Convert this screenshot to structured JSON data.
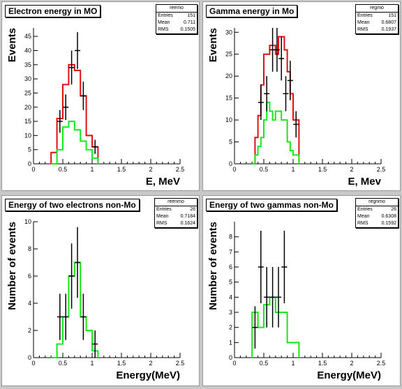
{
  "colors": {
    "red": "#e01010",
    "green": "#18e818",
    "data": "#000000"
  },
  "pads": [
    {
      "title": "Electron energy in MO",
      "stats": {
        "name": "reemo",
        "rows": [
          [
            "Entries",
            "151"
          ],
          [
            "Mean",
            "0.711"
          ],
          [
            "RMS",
            "0.1505"
          ]
        ]
      },
      "xlabel": "E, MeV",
      "ylabel": "Events"
    },
    {
      "title": "Gamma energy in Mo",
      "stats": {
        "name": "regmo",
        "rows": [
          [
            "Entries",
            "151"
          ],
          [
            "Mean",
            "0.6807"
          ],
          [
            "RMS",
            "0.1937"
          ]
        ]
      },
      "xlabel": "E, Mev",
      "ylabel": "Events"
    },
    {
      "title": "Energy of two electrons non-Mo",
      "stats": {
        "name": "reenmo",
        "rows": [
          [
            "Entries",
            "26"
          ],
          [
            "Mean",
            "0.7184"
          ],
          [
            "RMS",
            "0.1624"
          ]
        ]
      },
      "xlabel": "Energy(MeV)",
      "ylabel": "Number of events"
    },
    {
      "title": "Energy of two gammas non-Mo",
      "stats": {
        "name": "regnmo",
        "rows": [
          [
            "Entries",
            "26"
          ],
          [
            "Mean",
            "0.6308"
          ],
          [
            "RMS",
            "0.1592"
          ]
        ]
      },
      "xlabel": "Energy(MeV)",
      "ylabel": "Number of events"
    }
  ],
  "chart_data": [
    {
      "type": "bar",
      "xlim": [
        0,
        2.5
      ],
      "ylim": [
        0,
        48
      ],
      "xticks": [
        0,
        0.5,
        1,
        1.5,
        2,
        2.5
      ],
      "yticks": [
        0,
        5,
        10,
        15,
        20,
        25,
        30,
        35,
        40,
        45
      ],
      "bin_edges": [
        0.3,
        0.4,
        0.5,
        0.6,
        0.7,
        0.8,
        0.9,
        1.0,
        1.1
      ],
      "series": [
        {
          "color": "red",
          "values": [
            4,
            16,
            28,
            35,
            33,
            24,
            10,
            6
          ]
        },
        {
          "color": "green",
          "values": [
            0,
            5,
            13,
            15,
            12,
            8,
            5,
            2
          ]
        }
      ],
      "points": [
        {
          "x": 0.45,
          "y": 15,
          "err": 4
        },
        {
          "x": 0.55,
          "y": 20,
          "err": 4.5
        },
        {
          "x": 0.65,
          "y": 34,
          "err": 6
        },
        {
          "x": 0.75,
          "y": 40,
          "err": 6.5
        },
        {
          "x": 0.85,
          "y": 24,
          "err": 5
        },
        {
          "x": 0.95,
          "y": 0,
          "err": 0
        },
        {
          "x": 1.05,
          "y": 6,
          "err": 2.5
        }
      ]
    },
    {
      "type": "bar",
      "xlim": [
        0,
        2.5
      ],
      "ylim": [
        0,
        31
      ],
      "xticks": [
        0,
        0.5,
        1,
        1.5,
        2,
        2.5
      ],
      "yticks": [
        0,
        5,
        10,
        15,
        20,
        25,
        30
      ],
      "bin_edges": [
        0.3,
        0.35,
        0.4,
        0.45,
        0.5,
        0.55,
        0.6,
        0.65,
        0.7,
        0.75,
        0.8,
        0.85,
        0.9,
        0.95,
        1.0,
        1.05,
        1.1
      ],
      "series": [
        {
          "color": "red",
          "values": [
            0,
            6,
            11,
            18,
            25,
            25,
            27,
            27,
            25,
            29,
            29,
            26,
            21,
            16,
            10,
            10
          ]
        },
        {
          "color": "green",
          "values": [
            0,
            2,
            4,
            6,
            10,
            14,
            12,
            10,
            12,
            12,
            10,
            10,
            5,
            3,
            2,
            2
          ]
        }
      ],
      "points": [
        {
          "x": 0.45,
          "y": 14,
          "err": 4
        },
        {
          "x": 0.55,
          "y": 16,
          "err": 4
        },
        {
          "x": 0.65,
          "y": 26,
          "err": 5
        },
        {
          "x": 0.725,
          "y": 26,
          "err": 5
        },
        {
          "x": 0.8,
          "y": 24,
          "err": 5
        },
        {
          "x": 0.875,
          "y": 16,
          "err": 4
        },
        {
          "x": 0.95,
          "y": 19,
          "err": 4.5
        },
        {
          "x": 1.05,
          "y": 9,
          "err": 3
        }
      ]
    },
    {
      "type": "bar",
      "xlim": [
        0,
        2.5
      ],
      "ylim": [
        0,
        10
      ],
      "xticks": [
        0,
        0.5,
        1,
        1.5,
        2,
        2.5
      ],
      "yticks": [
        0,
        2,
        4,
        6,
        8,
        10
      ],
      "bin_edges": [
        0.3,
        0.4,
        0.5,
        0.6,
        0.7,
        0.8,
        0.9,
        1.0,
        1.1
      ],
      "series": [
        {
          "color": "green",
          "values": [
            0,
            1,
            3,
            6,
            7,
            3,
            2,
            0.5
          ]
        }
      ],
      "points": [
        {
          "x": 0.45,
          "y": 3,
          "err": 1.7
        },
        {
          "x": 0.55,
          "y": 3,
          "err": 1.7
        },
        {
          "x": 0.65,
          "y": 6,
          "err": 2.4
        },
        {
          "x": 0.75,
          "y": 7,
          "err": 2.6
        },
        {
          "x": 0.85,
          "y": 3,
          "err": 1.7
        },
        {
          "x": 1.05,
          "y": 1,
          "err": 1
        }
      ]
    },
    {
      "type": "bar",
      "xlim": [
        0,
        2.5
      ],
      "ylim": [
        0,
        9
      ],
      "xticks": [
        0,
        0.5,
        1,
        1.5,
        2,
        2.5
      ],
      "yticks": [
        0,
        1,
        2,
        3,
        4,
        5,
        6,
        7,
        8
      ],
      "bin_edges": [
        0.3,
        0.4,
        0.5,
        0.6,
        0.7,
        0.8,
        0.9,
        1.0,
        1.1
      ],
      "series": [
        {
          "color": "green",
          "values": [
            3,
            2,
            3.5,
            4,
            3,
            3,
            1,
            1
          ]
        }
      ],
      "points": [
        {
          "x": 0.35,
          "y": 2,
          "err": 1.4
        },
        {
          "x": 0.45,
          "y": 6,
          "err": 2.4
        },
        {
          "x": 0.55,
          "y": 4,
          "err": 2
        },
        {
          "x": 0.65,
          "y": 4,
          "err": 2
        },
        {
          "x": 0.75,
          "y": 4,
          "err": 2
        },
        {
          "x": 0.85,
          "y": 6,
          "err": 2.4
        }
      ]
    }
  ]
}
